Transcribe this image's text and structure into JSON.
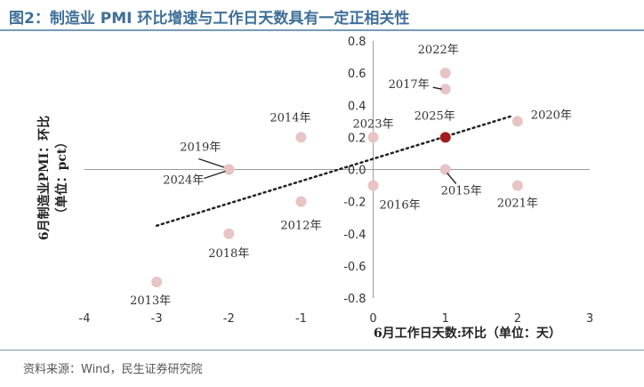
{
  "header": {
    "title": "图2：制造业 PMI 环比增速与工作日天数具有一定正相关性"
  },
  "footer": {
    "source": "资料来源：Wind，民生证券研究院"
  },
  "chart_data": {
    "type": "scatter",
    "xlabel": "6月工作日天数:环比（单位：天）",
    "ylabel_line1": "6月制造业PMI：环比",
    "ylabel_line2": "（单位：pct）",
    "xlim": [
      -4,
      3
    ],
    "ylim": [
      -0.8,
      0.8
    ],
    "x_ticks": [
      -4,
      -3,
      -2,
      -1,
      0,
      1,
      2,
      3
    ],
    "y_ticks": [
      -0.8,
      -0.6,
      -0.4,
      -0.2,
      0.0,
      0.2,
      0.4,
      0.6,
      0.8
    ],
    "grid": false,
    "trendline": {
      "style": "dotted",
      "x_start": -3,
      "y_start": -0.35,
      "x_end": 1.9,
      "y_end": 0.33
    },
    "points": [
      {
        "label": "2022年",
        "x": 1,
        "y": 0.6
      },
      {
        "label": "2017年",
        "x": 1,
        "y": 0.5
      },
      {
        "label": "2014年",
        "x": -1,
        "y": 0.2
      },
      {
        "label": "2023年",
        "x": 0,
        "y": 0.2
      },
      {
        "label": "2025年",
        "x": 1,
        "y": 0.2,
        "highlight": true
      },
      {
        "label": "2020年",
        "x": 2,
        "y": 0.3
      },
      {
        "label": "2019年",
        "x": -2,
        "y": 0.0
      },
      {
        "label": "2024年",
        "x": -2,
        "y": 0.0
      },
      {
        "label": "2015年",
        "x": 1,
        "y": 0.0
      },
      {
        "label": "2016年",
        "x": 0,
        "y": -0.1
      },
      {
        "label": "2012年",
        "x": -1,
        "y": -0.2
      },
      {
        "label": "2021年",
        "x": 2,
        "y": -0.1
      },
      {
        "label": "2018年",
        "x": -2,
        "y": -0.4
      },
      {
        "label": "2013年",
        "x": -3,
        "y": -0.7
      }
    ],
    "colors": {
      "point": "#e8c4c4",
      "highlight": "#a31d1d",
      "trend": "#222222"
    }
  }
}
